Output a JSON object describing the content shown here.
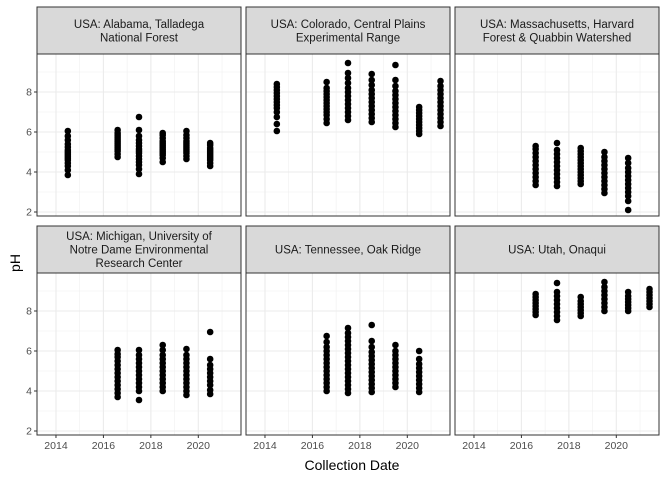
{
  "chart_data": {
    "type": "scatter",
    "xlabel": "Collection Date",
    "ylabel": "pH",
    "xlim": [
      2013.2,
      2021.8
    ],
    "ylim": [
      1.8,
      9.9
    ],
    "xticks": [
      2014,
      2016,
      2018,
      2020
    ],
    "yticks": [
      2,
      4,
      6,
      8
    ],
    "grid": true,
    "point_color": "#000000",
    "panels": [
      {
        "title": "USA: Alabama, Talladega\nNational Forest",
        "clusters": [
          {
            "x": 2014.5,
            "y": [
              3.85,
              4.1,
              4.3,
              4.45,
              4.6,
              4.7,
              4.8,
              4.9,
              5.0,
              5.1,
              5.25,
              5.4,
              5.6,
              5.8,
              6.05
            ]
          },
          {
            "x": 2016.6,
            "y": [
              4.75,
              4.9,
              5.05,
              5.15,
              5.25,
              5.35,
              5.45,
              5.55,
              5.65,
              5.75,
              5.85,
              5.95,
              6.1
            ]
          },
          {
            "x": 2017.5,
            "y": [
              3.9,
              4.15,
              4.35,
              4.5,
              4.65,
              4.8,
              4.95,
              5.05,
              5.15,
              5.3,
              5.45,
              5.6,
              5.8,
              6.1,
              6.75
            ]
          },
          {
            "x": 2018.5,
            "y": [
              4.5,
              4.7,
              4.85,
              4.95,
              5.05,
              5.15,
              5.25,
              5.35,
              5.45,
              5.55,
              5.7,
              5.85,
              5.95
            ]
          },
          {
            "x": 2019.5,
            "y": [
              4.65,
              4.8,
              4.95,
              5.05,
              5.15,
              5.25,
              5.35,
              5.45,
              5.55,
              5.7,
              5.85,
              6.05
            ]
          },
          {
            "x": 2020.5,
            "y": [
              4.3,
              4.45,
              4.6,
              4.7,
              4.8,
              4.9,
              5.0,
              5.1,
              5.2,
              5.35,
              5.45
            ]
          }
        ]
      },
      {
        "title": "USA: Colorado, Central Plains\nExperimental Range",
        "clusters": [
          {
            "x": 2014.5,
            "y": [
              6.05,
              6.4,
              6.75,
              7.0,
              7.2,
              7.35,
              7.5,
              7.65,
              7.8,
              7.95,
              8.1,
              8.25,
              8.4
            ]
          },
          {
            "x": 2016.6,
            "y": [
              6.45,
              6.65,
              6.85,
              7.0,
              7.15,
              7.3,
              7.45,
              7.6,
              7.75,
              7.9,
              8.05,
              8.2,
              8.5
            ]
          },
          {
            "x": 2017.5,
            "y": [
              6.6,
              6.8,
              7.0,
              7.2,
              7.4,
              7.6,
              7.8,
              8.0,
              8.2,
              8.45,
              8.7,
              8.95,
              9.45
            ]
          },
          {
            "x": 2018.5,
            "y": [
              6.5,
              6.7,
              6.9,
              7.1,
              7.3,
              7.5,
              7.7,
              7.9,
              8.1,
              8.35,
              8.6,
              8.9
            ]
          },
          {
            "x": 2019.5,
            "y": [
              6.25,
              6.45,
              6.65,
              6.85,
              7.05,
              7.25,
              7.45,
              7.65,
              7.85,
              8.05,
              8.3,
              8.6,
              9.35
            ]
          },
          {
            "x": 2020.5,
            "y": [
              5.9,
              6.05,
              6.2,
              6.35,
              6.5,
              6.65,
              6.8,
              6.95,
              7.1,
              7.25
            ]
          },
          {
            "x": 2021.4,
            "y": [
              6.3,
              6.5,
              6.7,
              6.9,
              7.1,
              7.3,
              7.5,
              7.7,
              7.9,
              8.1,
              8.3,
              8.55
            ]
          }
        ]
      },
      {
        "title": "USA: Massachusetts, Harvard\nForest & Quabbin Watershed",
        "clusters": [
          {
            "x": 2016.6,
            "y": [
              3.35,
              3.55,
              3.75,
              3.95,
              4.15,
              4.35,
              4.55,
              4.75,
              4.95,
              5.15,
              5.3
            ]
          },
          {
            "x": 2017.5,
            "y": [
              3.3,
              3.5,
              3.7,
              3.9,
              4.1,
              4.3,
              4.5,
              4.7,
              4.9,
              5.1,
              5.45
            ]
          },
          {
            "x": 2018.5,
            "y": [
              3.4,
              3.55,
              3.7,
              3.85,
              4.0,
              4.15,
              4.3,
              4.45,
              4.6,
              4.75,
              4.9,
              5.05,
              5.2
            ]
          },
          {
            "x": 2019.5,
            "y": [
              2.95,
              3.15,
              3.35,
              3.55,
              3.75,
              3.95,
              4.15,
              4.35,
              4.55,
              4.75,
              5.0
            ]
          },
          {
            "x": 2020.5,
            "y": [
              2.1,
              2.55,
              2.8,
              3.0,
              3.2,
              3.4,
              3.6,
              3.8,
              4.0,
              4.2,
              4.45,
              4.7
            ]
          }
        ]
      },
      {
        "title": "USA: Michigan, University of\nNotre Dame Environmental\nResearch Center",
        "clusters": [
          {
            "x": 2016.6,
            "y": [
              3.7,
              3.9,
              4.1,
              4.3,
              4.5,
              4.7,
              4.9,
              5.1,
              5.3,
              5.5,
              5.7,
              5.85,
              6.05
            ]
          },
          {
            "x": 2017.5,
            "y": [
              3.55,
              4.0,
              4.2,
              4.4,
              4.6,
              4.8,
              5.0,
              5.2,
              5.4,
              5.6,
              5.8,
              6.05
            ]
          },
          {
            "x": 2018.5,
            "y": [
              4.0,
              4.2,
              4.4,
              4.6,
              4.8,
              5.0,
              5.2,
              5.4,
              5.6,
              5.8,
              6.05,
              6.3
            ]
          },
          {
            "x": 2019.5,
            "y": [
              3.8,
              4.0,
              4.2,
              4.4,
              4.6,
              4.8,
              5.0,
              5.2,
              5.4,
              5.6,
              5.8,
              6.1
            ]
          },
          {
            "x": 2020.5,
            "y": [
              3.85,
              4.05,
              4.3,
              4.5,
              4.7,
              4.9,
              5.1,
              5.3,
              5.6,
              6.95
            ]
          }
        ]
      },
      {
        "title": "USA: Tennessee, Oak Ridge",
        "clusters": [
          {
            "x": 2016.6,
            "y": [
              4.0,
              4.2,
              4.4,
              4.6,
              4.8,
              5.0,
              5.2,
              5.4,
              5.6,
              5.8,
              6.0,
              6.2,
              6.45,
              6.75
            ]
          },
          {
            "x": 2017.5,
            "y": [
              3.9,
              4.1,
              4.3,
              4.5,
              4.7,
              4.9,
              5.1,
              5.3,
              5.5,
              5.7,
              5.9,
              6.1,
              6.3,
              6.5,
              6.7,
              6.9,
              7.15
            ]
          },
          {
            "x": 2018.5,
            "y": [
              3.95,
              4.15,
              4.35,
              4.55,
              4.75,
              4.95,
              5.15,
              5.35,
              5.55,
              5.75,
              5.95,
              6.2,
              6.5,
              7.3
            ]
          },
          {
            "x": 2019.5,
            "y": [
              4.2,
              4.4,
              4.6,
              4.8,
              5.0,
              5.2,
              5.4,
              5.6,
              5.8,
              6.0,
              6.3
            ]
          },
          {
            "x": 2020.5,
            "y": [
              3.95,
              4.15,
              4.35,
              4.55,
              4.75,
              4.95,
              5.15,
              5.35,
              5.6,
              6.0
            ]
          }
        ]
      },
      {
        "title": "USA: Utah, Onaqui",
        "clusters": [
          {
            "x": 2016.6,
            "y": [
              7.8,
              7.95,
              8.1,
              8.25,
              8.4,
              8.55,
              8.7,
              8.85
            ]
          },
          {
            "x": 2017.5,
            "y": [
              7.55,
              7.75,
              7.95,
              8.15,
              8.35,
              8.55,
              8.75,
              8.95,
              9.4
            ]
          },
          {
            "x": 2018.5,
            "y": [
              7.75,
              7.9,
              8.05,
              8.2,
              8.35,
              8.5,
              8.7
            ]
          },
          {
            "x": 2019.5,
            "y": [
              8.0,
              8.2,
              8.4,
              8.6,
              8.8,
              9.0,
              9.2,
              9.45
            ]
          },
          {
            "x": 2020.5,
            "y": [
              8.0,
              8.15,
              8.3,
              8.45,
              8.6,
              8.75,
              8.95
            ]
          },
          {
            "x": 2021.4,
            "y": [
              8.2,
              8.35,
              8.5,
              8.65,
              8.8,
              8.95,
              9.1
            ]
          }
        ]
      }
    ]
  }
}
